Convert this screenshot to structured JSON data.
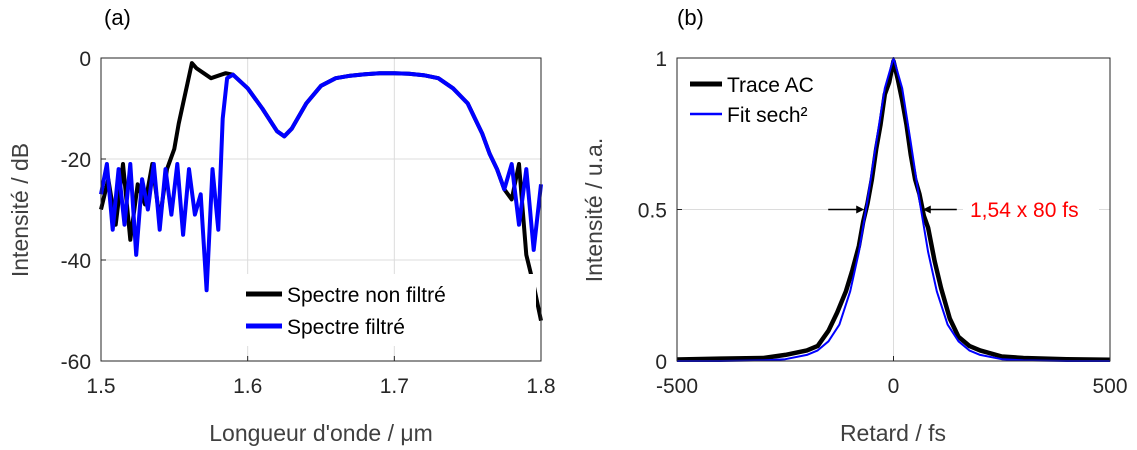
{
  "colors": {
    "black_series": "#000000",
    "blue_series": "#0000ff",
    "annotation": "#ff0000",
    "grid": "#dcdcdc",
    "axis": "#262626"
  },
  "chart_data": [
    {
      "panel": "(a)",
      "type": "line",
      "xlabel": "Longueur d'onde / μm",
      "ylabel": "Intensité / dB",
      "xlim": [
        1.5,
        1.8
      ],
      "ylim": [
        -60,
        0
      ],
      "xticks": [
        1.5,
        1.6,
        1.7,
        1.8
      ],
      "xtick_labels": [
        "1.5",
        "1.6",
        "1.7",
        "1.8"
      ],
      "yticks": [
        -60,
        -40,
        -20,
        0
      ],
      "ytick_labels": [
        "-60",
        "-40",
        "-20",
        "0"
      ],
      "grid": true,
      "legend_position": "bottom-right",
      "series": [
        {
          "name": "Spectre non filtré",
          "color": "#000000",
          "x": [
            1.5,
            1.505,
            1.51,
            1.515,
            1.52,
            1.525,
            1.53,
            1.535,
            1.54,
            1.545,
            1.55,
            1.553,
            1.556,
            1.559,
            1.562,
            1.565,
            1.57,
            1.575,
            1.58,
            1.585,
            1.59,
            1.6,
            1.61,
            1.62,
            1.625,
            1.63,
            1.64,
            1.65,
            1.66,
            1.67,
            1.68,
            1.69,
            1.7,
            1.71,
            1.72,
            1.73,
            1.74,
            1.75,
            1.755,
            1.76,
            1.765,
            1.77,
            1.775,
            1.78,
            1.785,
            1.79,
            1.795,
            1.8
          ],
          "y": [
            -30,
            -24,
            -33,
            -21,
            -36,
            -25,
            -29,
            -21,
            -32,
            -22,
            -18,
            -13,
            -9,
            -5,
            -1,
            -2,
            -3,
            -4,
            -3.5,
            -3,
            -3.3,
            -6,
            -10,
            -14.5,
            -15.5,
            -14,
            -9,
            -5.5,
            -4,
            -3.5,
            -3.2,
            -3,
            -3,
            -3.1,
            -3.4,
            -4,
            -6,
            -9,
            -12,
            -15,
            -19,
            -22,
            -26,
            -28,
            -21,
            -39,
            -45,
            -52
          ]
        },
        {
          "name": "Spectre filtré",
          "color": "#0000ff",
          "x": [
            1.5,
            1.504,
            1.508,
            1.512,
            1.516,
            1.52,
            1.524,
            1.528,
            1.532,
            1.536,
            1.54,
            1.544,
            1.548,
            1.552,
            1.556,
            1.56,
            1.564,
            1.568,
            1.572,
            1.576,
            1.58,
            1.583,
            1.586,
            1.59,
            1.6,
            1.61,
            1.62,
            1.625,
            1.63,
            1.64,
            1.65,
            1.66,
            1.67,
            1.68,
            1.69,
            1.7,
            1.71,
            1.72,
            1.73,
            1.74,
            1.75,
            1.755,
            1.76,
            1.765,
            1.77,
            1.775,
            1.78,
            1.785,
            1.79,
            1.795,
            1.8
          ],
          "y": [
            -27,
            -21,
            -34,
            -22,
            -33,
            -21,
            -39,
            -24,
            -30,
            -21,
            -34,
            -22,
            -31,
            -21,
            -35,
            -22,
            -31,
            -27,
            -46,
            -22,
            -34,
            -12,
            -4,
            -3.3,
            -6,
            -10,
            -14.5,
            -15.5,
            -14,
            -9,
            -5.5,
            -4,
            -3.5,
            -3.2,
            -3,
            -3,
            -3.1,
            -3.4,
            -4,
            -6,
            -9,
            -12,
            -15,
            -19,
            -22,
            -26,
            -21,
            -33,
            -22,
            -38,
            -25
          ]
        }
      ]
    },
    {
      "panel": "(b)",
      "type": "line",
      "xlabel": "Retard / fs",
      "ylabel": "Intensité / u.a.",
      "xlim": [
        -500,
        500
      ],
      "ylim": [
        0,
        1
      ],
      "xticks": [
        -500,
        0,
        500
      ],
      "xtick_labels": [
        "-500",
        "0",
        "500"
      ],
      "yticks": [
        0,
        0.5,
        1
      ],
      "ytick_labels": [
        "0",
        "0.5",
        "1"
      ],
      "grid": true,
      "legend_position": "top-left",
      "annotation": "1,54 x 80 fs",
      "annotation_y": 0.5,
      "fwhm_arrows_x": [
        -63,
        63
      ],
      "series": [
        {
          "name": "Trace AC",
          "color": "#000000",
          "x": [
            -500,
            -400,
            -300,
            -250,
            -200,
            -175,
            -150,
            -130,
            -110,
            -95,
            -80,
            -70,
            -60,
            -50,
            -40,
            -30,
            -20,
            -10,
            0,
            10,
            20,
            30,
            40,
            50,
            60,
            70,
            80,
            95,
            110,
            130,
            150,
            175,
            200,
            250,
            300,
            400,
            500
          ],
          "y": [
            0.005,
            0.008,
            0.01,
            0.02,
            0.035,
            0.05,
            0.1,
            0.16,
            0.23,
            0.3,
            0.38,
            0.46,
            0.52,
            0.6,
            0.7,
            0.78,
            0.88,
            0.92,
            0.99,
            0.93,
            0.86,
            0.78,
            0.68,
            0.6,
            0.55,
            0.48,
            0.44,
            0.33,
            0.24,
            0.14,
            0.08,
            0.05,
            0.035,
            0.015,
            0.01,
            0.006,
            0.004
          ]
        },
        {
          "name": "Fit sech²",
          "color": "#0000ff",
          "x": [
            -500,
            -400,
            -300,
            -250,
            -200,
            -175,
            -150,
            -125,
            -100,
            -80,
            -60,
            -40,
            -20,
            0,
            20,
            40,
            60,
            80,
            100,
            125,
            150,
            175,
            200,
            250,
            300,
            400,
            500
          ],
          "y": [
            0.0,
            0.0,
            0.002,
            0.006,
            0.02,
            0.035,
            0.065,
            0.12,
            0.23,
            0.36,
            0.53,
            0.72,
            0.9,
            1.0,
            0.9,
            0.72,
            0.53,
            0.36,
            0.23,
            0.12,
            0.065,
            0.035,
            0.02,
            0.006,
            0.002,
            0.0,
            0.0
          ]
        }
      ]
    }
  ]
}
